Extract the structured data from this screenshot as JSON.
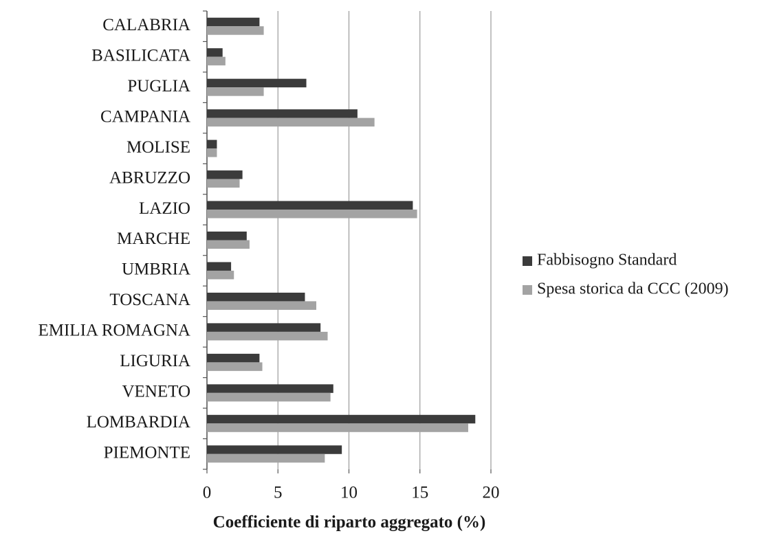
{
  "chart_data": {
    "type": "bar",
    "orientation": "horizontal",
    "x_label": "Coefficiente di riparto aggregato (%)",
    "categories": [
      "CALABRIA",
      "BASILICATA",
      "PUGLIA",
      "CAMPANIA",
      "MOLISE",
      "ABRUZZO",
      "LAZIO",
      "MARCHE",
      "UMBRIA",
      "TOSCANA",
      "EMILIA ROMAGNA",
      "LIGURIA",
      "VENETO",
      "LOMBARDIA",
      "PIEMONTE"
    ],
    "series": [
      {
        "name": "Fabbisogno Standard",
        "color": "#3b3b3b",
        "values": [
          3.7,
          1.1,
          7.0,
          10.6,
          0.7,
          2.5,
          14.5,
          2.8,
          1.7,
          6.9,
          8.0,
          3.7,
          8.9,
          18.9,
          9.5
        ]
      },
      {
        "name": "Spesa storica da CCC (2009)",
        "color": "#a3a3a3",
        "values": [
          4.0,
          1.3,
          4.0,
          11.8,
          0.7,
          2.3,
          14.8,
          3.0,
          1.9,
          7.7,
          8.5,
          3.9,
          8.7,
          18.4,
          8.3
        ]
      }
    ],
    "xlim": [
      0,
      20
    ],
    "xticks": [
      0,
      5,
      10,
      15,
      20
    ],
    "grid": true,
    "legend": "right"
  }
}
